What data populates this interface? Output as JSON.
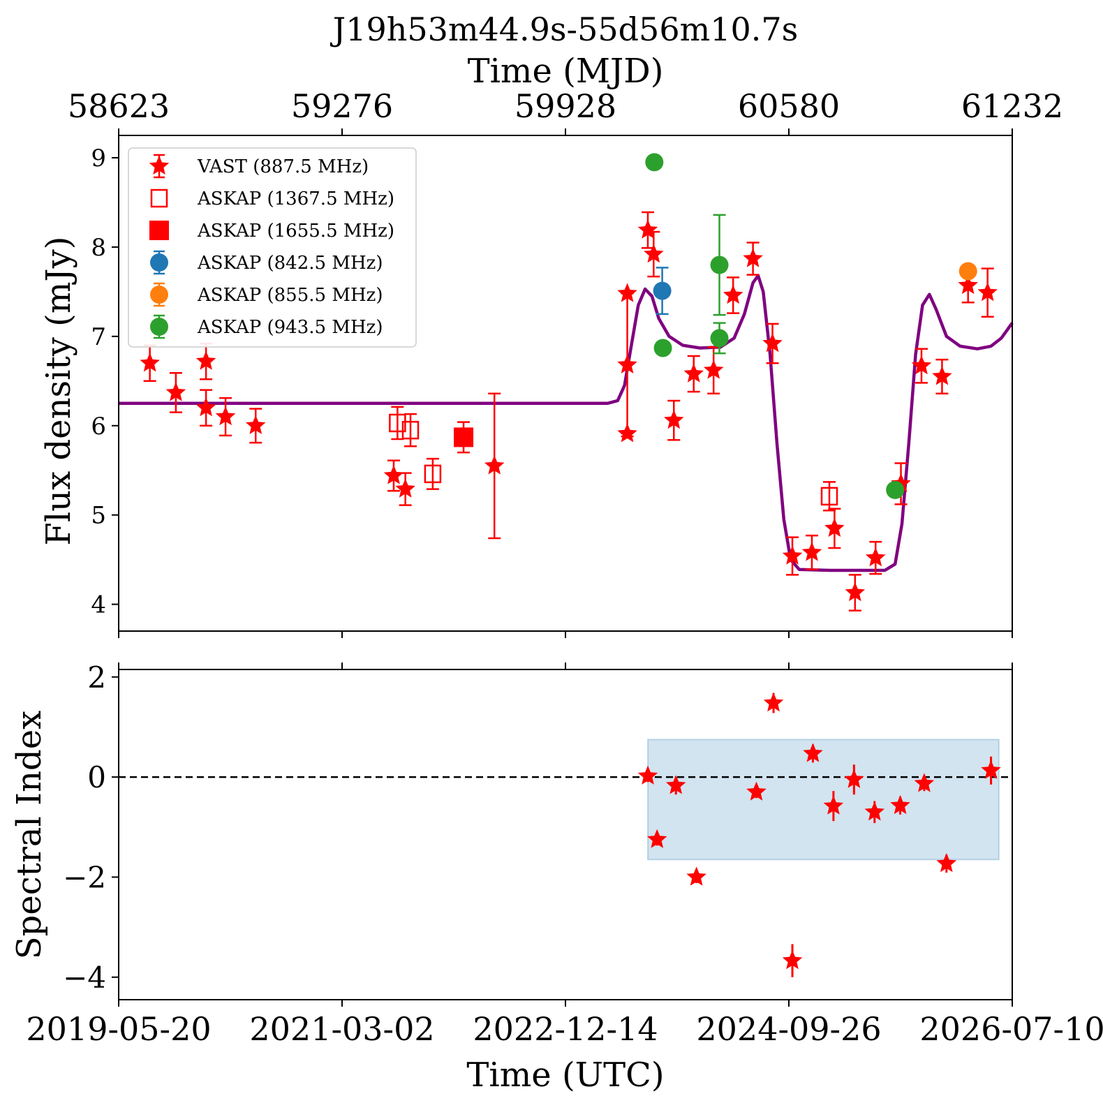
{
  "chart_data": [
    {
      "type": "scatter",
      "title": "J19h53m44.9s-55d56m10.7s",
      "top_xlabel": "Time (MJD)",
      "top_ticks": [
        "58623",
        "59276",
        "59928",
        "60580",
        "61232"
      ],
      "xlabel": "",
      "ylabel": "Flux density (mJy)",
      "xlim_mjd": [
        58623,
        61232
      ],
      "ylim": [
        3.7,
        9.25
      ],
      "yticks": [
        "4",
        "5",
        "6",
        "7",
        "8",
        "9"
      ],
      "legend_position": "upper-left",
      "colors": {
        "vast": "#ff0000",
        "askap_1367": "#ff0000",
        "askap_1655": "#ff0000",
        "askap_842": "#1f77b4",
        "askap_855": "#ff7f0e",
        "askap_943": "#2ca02c",
        "model": "#800080"
      },
      "series": [
        {
          "name": "VAST (887.5 MHz)",
          "marker": "star",
          "points": [
            {
              "mjd": 58714,
              "y": 6.7,
              "err": 0.2
            },
            {
              "mjd": 58790,
              "y": 6.37,
              "err": 0.22
            },
            {
              "mjd": 58878,
              "y": 6.2,
              "err": 0.2
            },
            {
              "mjd": 58878,
              "y": 6.72,
              "err": 0.2
            },
            {
              "mjd": 58935,
              "y": 6.1,
              "err": 0.21
            },
            {
              "mjd": 59023,
              "y": 6.0,
              "err": 0.19
            },
            {
              "mjd": 59426,
              "y": 5.44,
              "err": 0.17
            },
            {
              "mjd": 59460,
              "y": 5.29,
              "err": 0.18
            },
            {
              "mjd": 59720,
              "y": 5.55,
              "err": 0.81
            },
            {
              "mjd": 60108,
              "y": 6.68,
              "err": 0.8
            },
            {
              "mjd": 60108,
              "y": 7.48,
              "err": 0.0
            },
            {
              "mjd": 60108,
              "y": 5.91,
              "err": 0.0
            },
            {
              "mjd": 60168,
              "y": 8.19,
              "err": 0.2
            },
            {
              "mjd": 60185,
              "y": 7.92,
              "err": 0.25
            },
            {
              "mjd": 60244,
              "y": 6.06,
              "err": 0.22
            },
            {
              "mjd": 60302,
              "y": 6.58,
              "err": 0.2
            },
            {
              "mjd": 60360,
              "y": 6.62,
              "err": 0.26
            },
            {
              "mjd": 60417,
              "y": 7.46,
              "err": 0.2
            },
            {
              "mjd": 60475,
              "y": 7.87,
              "err": 0.18
            },
            {
              "mjd": 60532,
              "y": 6.92,
              "err": 0.22
            },
            {
              "mjd": 60590,
              "y": 4.54,
              "err": 0.21
            },
            {
              "mjd": 60647,
              "y": 4.58,
              "err": 0.19
            },
            {
              "mjd": 60713,
              "y": 4.85,
              "err": 0.22
            },
            {
              "mjd": 60773,
              "y": 4.13,
              "err": 0.2
            },
            {
              "mjd": 60833,
              "y": 4.52,
              "err": 0.18
            },
            {
              "mjd": 60907,
              "y": 5.35,
              "err": 0.23
            },
            {
              "mjd": 60967,
              "y": 6.67,
              "err": 0.19
            },
            {
              "mjd": 61027,
              "y": 6.55,
              "err": 0.19
            },
            {
              "mjd": 61103,
              "y": 7.57,
              "err": 0.19
            },
            {
              "mjd": 61160,
              "y": 7.49,
              "err": 0.27
            }
          ]
        },
        {
          "name": "ASKAP (1367.5 MHz)",
          "marker": "open-square",
          "points": [
            {
              "mjd": 59437,
              "y": 6.03,
              "err": 0.18
            },
            {
              "mjd": 59475,
              "y": 5.95,
              "err": 0.18
            },
            {
              "mjd": 59540,
              "y": 5.46,
              "err": 0.17
            },
            {
              "mjd": 60698,
              "y": 5.21,
              "err": 0.16
            }
          ]
        },
        {
          "name": "ASKAP (1655.5 MHz)",
          "marker": "filled-square",
          "points": [
            {
              "mjd": 59630,
              "y": 5.87,
              "err": 0.17
            }
          ]
        },
        {
          "name": "ASKAP (842.5 MHz)",
          "marker": "circle",
          "points": [
            {
              "mjd": 60210,
              "y": 7.51,
              "err": 0.26
            }
          ]
        },
        {
          "name": "ASKAP (855.5 MHz)",
          "marker": "circle",
          "points": [
            {
              "mjd": 61103,
              "y": 7.73,
              "err": 0.0
            }
          ]
        },
        {
          "name": "ASKAP (943.5 MHz)",
          "marker": "circle",
          "points": [
            {
              "mjd": 60187,
              "y": 8.95,
              "err": 0.0
            },
            {
              "mjd": 60212,
              "y": 6.87,
              "err": 0.0
            },
            {
              "mjd": 60377,
              "y": 7.8,
              "err": 0.56
            },
            {
              "mjd": 60377,
              "y": 6.98,
              "err": 0.17
            },
            {
              "mjd": 60890,
              "y": 5.28,
              "err": 0.0
            }
          ]
        }
      ],
      "model_curve": {
        "type": "line",
        "points": [
          [
            58623,
            6.25
          ],
          [
            59800,
            6.25
          ],
          [
            60050,
            6.25
          ],
          [
            60080,
            6.28
          ],
          [
            60100,
            6.45
          ],
          [
            60120,
            6.9
          ],
          [
            60140,
            7.35
          ],
          [
            60160,
            7.53
          ],
          [
            60180,
            7.45
          ],
          [
            60200,
            7.2
          ],
          [
            60230,
            7.0
          ],
          [
            60270,
            6.9
          ],
          [
            60320,
            6.87
          ],
          [
            60380,
            6.88
          ],
          [
            60420,
            6.98
          ],
          [
            60450,
            7.25
          ],
          [
            60475,
            7.6
          ],
          [
            60490,
            7.68
          ],
          [
            60505,
            7.5
          ],
          [
            60525,
            6.8
          ],
          [
            60545,
            5.8
          ],
          [
            60565,
            4.95
          ],
          [
            60585,
            4.5
          ],
          [
            60610,
            4.39
          ],
          [
            60700,
            4.38
          ],
          [
            60860,
            4.38
          ],
          [
            60890,
            4.45
          ],
          [
            60910,
            4.9
          ],
          [
            60930,
            5.8
          ],
          [
            60950,
            6.8
          ],
          [
            60970,
            7.35
          ],
          [
            60990,
            7.47
          ],
          [
            61010,
            7.3
          ],
          [
            61040,
            7.0
          ],
          [
            61080,
            6.89
          ],
          [
            61130,
            6.86
          ],
          [
            61170,
            6.89
          ],
          [
            61200,
            6.98
          ],
          [
            61232,
            7.15
          ]
        ]
      }
    },
    {
      "type": "scatter",
      "xlabel": "Time (UTC)",
      "ylabel": "Spectral Index",
      "xlim_mjd": [
        58623,
        61232
      ],
      "xticks": [
        "2019-05-20",
        "2021-03-02",
        "2022-12-14",
        "2024-09-26",
        "2026-07-10"
      ],
      "ylim": [
        -4.45,
        2.15
      ],
      "yticks": [
        "−4",
        "−2",
        "0",
        "2"
      ],
      "reference_line_y": 0,
      "shaded_band": {
        "mjd_range": [
          60168,
          61193
        ],
        "y_range": [
          -1.65,
          0.75
        ],
        "color": "#1f77b4"
      },
      "series": [
        {
          "name": "",
          "marker": "star",
          "points": [
            {
              "mjd": 60168,
              "y": 0.02,
              "err": 0.12
            },
            {
              "mjd": 60195,
              "y": -1.25,
              "err": 0.12
            },
            {
              "mjd": 60250,
              "y": -0.17,
              "err": 0.18
            },
            {
              "mjd": 60310,
              "y": -2.0,
              "err": 0.12
            },
            {
              "mjd": 60485,
              "y": -0.3,
              "err": 0.12
            },
            {
              "mjd": 60535,
              "y": 1.48,
              "err": 0.2
            },
            {
              "mjd": 60590,
              "y": -3.67,
              "err": 0.33
            },
            {
              "mjd": 60650,
              "y": 0.47,
              "err": 0.18
            },
            {
              "mjd": 60710,
              "y": -0.58,
              "err": 0.3
            },
            {
              "mjd": 60770,
              "y": -0.05,
              "err": 0.3
            },
            {
              "mjd": 60830,
              "y": -0.7,
              "err": 0.22
            },
            {
              "mjd": 60905,
              "y": -0.57,
              "err": 0.18
            },
            {
              "mjd": 60975,
              "y": -0.13,
              "err": 0.15
            },
            {
              "mjd": 61040,
              "y": -1.73,
              "err": 0.18
            },
            {
              "mjd": 61170,
              "y": 0.13,
              "err": 0.28
            }
          ]
        }
      ]
    }
  ]
}
